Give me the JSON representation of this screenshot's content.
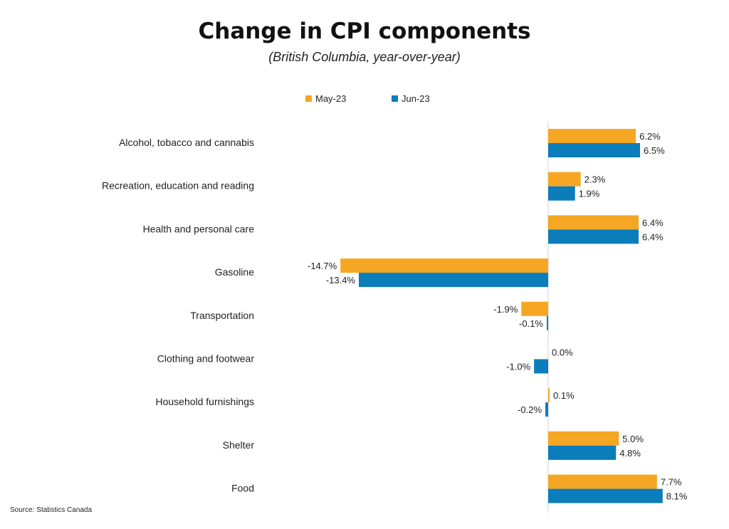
{
  "chart_data": {
    "type": "bar",
    "orientation": "horizontal",
    "title": "Change in CPI components",
    "subtitle": "(British Columbia, year-over-year)",
    "categories": [
      "Alcohol, tobacco and cannabis",
      "Recreation, education and reading",
      "Health and personal care",
      "Gasoline",
      "Transportation",
      "Clothing and footwear",
      "Household furnishings",
      "Shelter",
      "Food"
    ],
    "series": [
      {
        "name": "May-23",
        "color": "#F5A623",
        "values": [
          6.2,
          2.3,
          6.4,
          -14.7,
          -1.9,
          0.0,
          0.1,
          5.0,
          7.7
        ],
        "labels": [
          "6.2%",
          "2.3%",
          "6.4%",
          "-14.7%",
          "-1.9%",
          "0.0%",
          "0.1%",
          "5.0%",
          "7.7%"
        ]
      },
      {
        "name": "Jun-23",
        "color": "#0A7DBA",
        "values": [
          6.5,
          1.9,
          6.4,
          -13.4,
          -0.1,
          -1.0,
          -0.2,
          4.8,
          8.1
        ],
        "labels": [
          "6.5%",
          "1.9%",
          "6.4%",
          "-13.4%",
          "-0.1%",
          "-1.0%",
          "-0.2%",
          "4.8%",
          "8.1%"
        ]
      }
    ],
    "xlim": [
      -16,
      10
    ],
    "units": "%",
    "legend_position": "top-center",
    "grid": false
  },
  "legend": {
    "may_label": "May-23",
    "jun_label": "Jun-23"
  },
  "source": "Source: Statistics Canada"
}
